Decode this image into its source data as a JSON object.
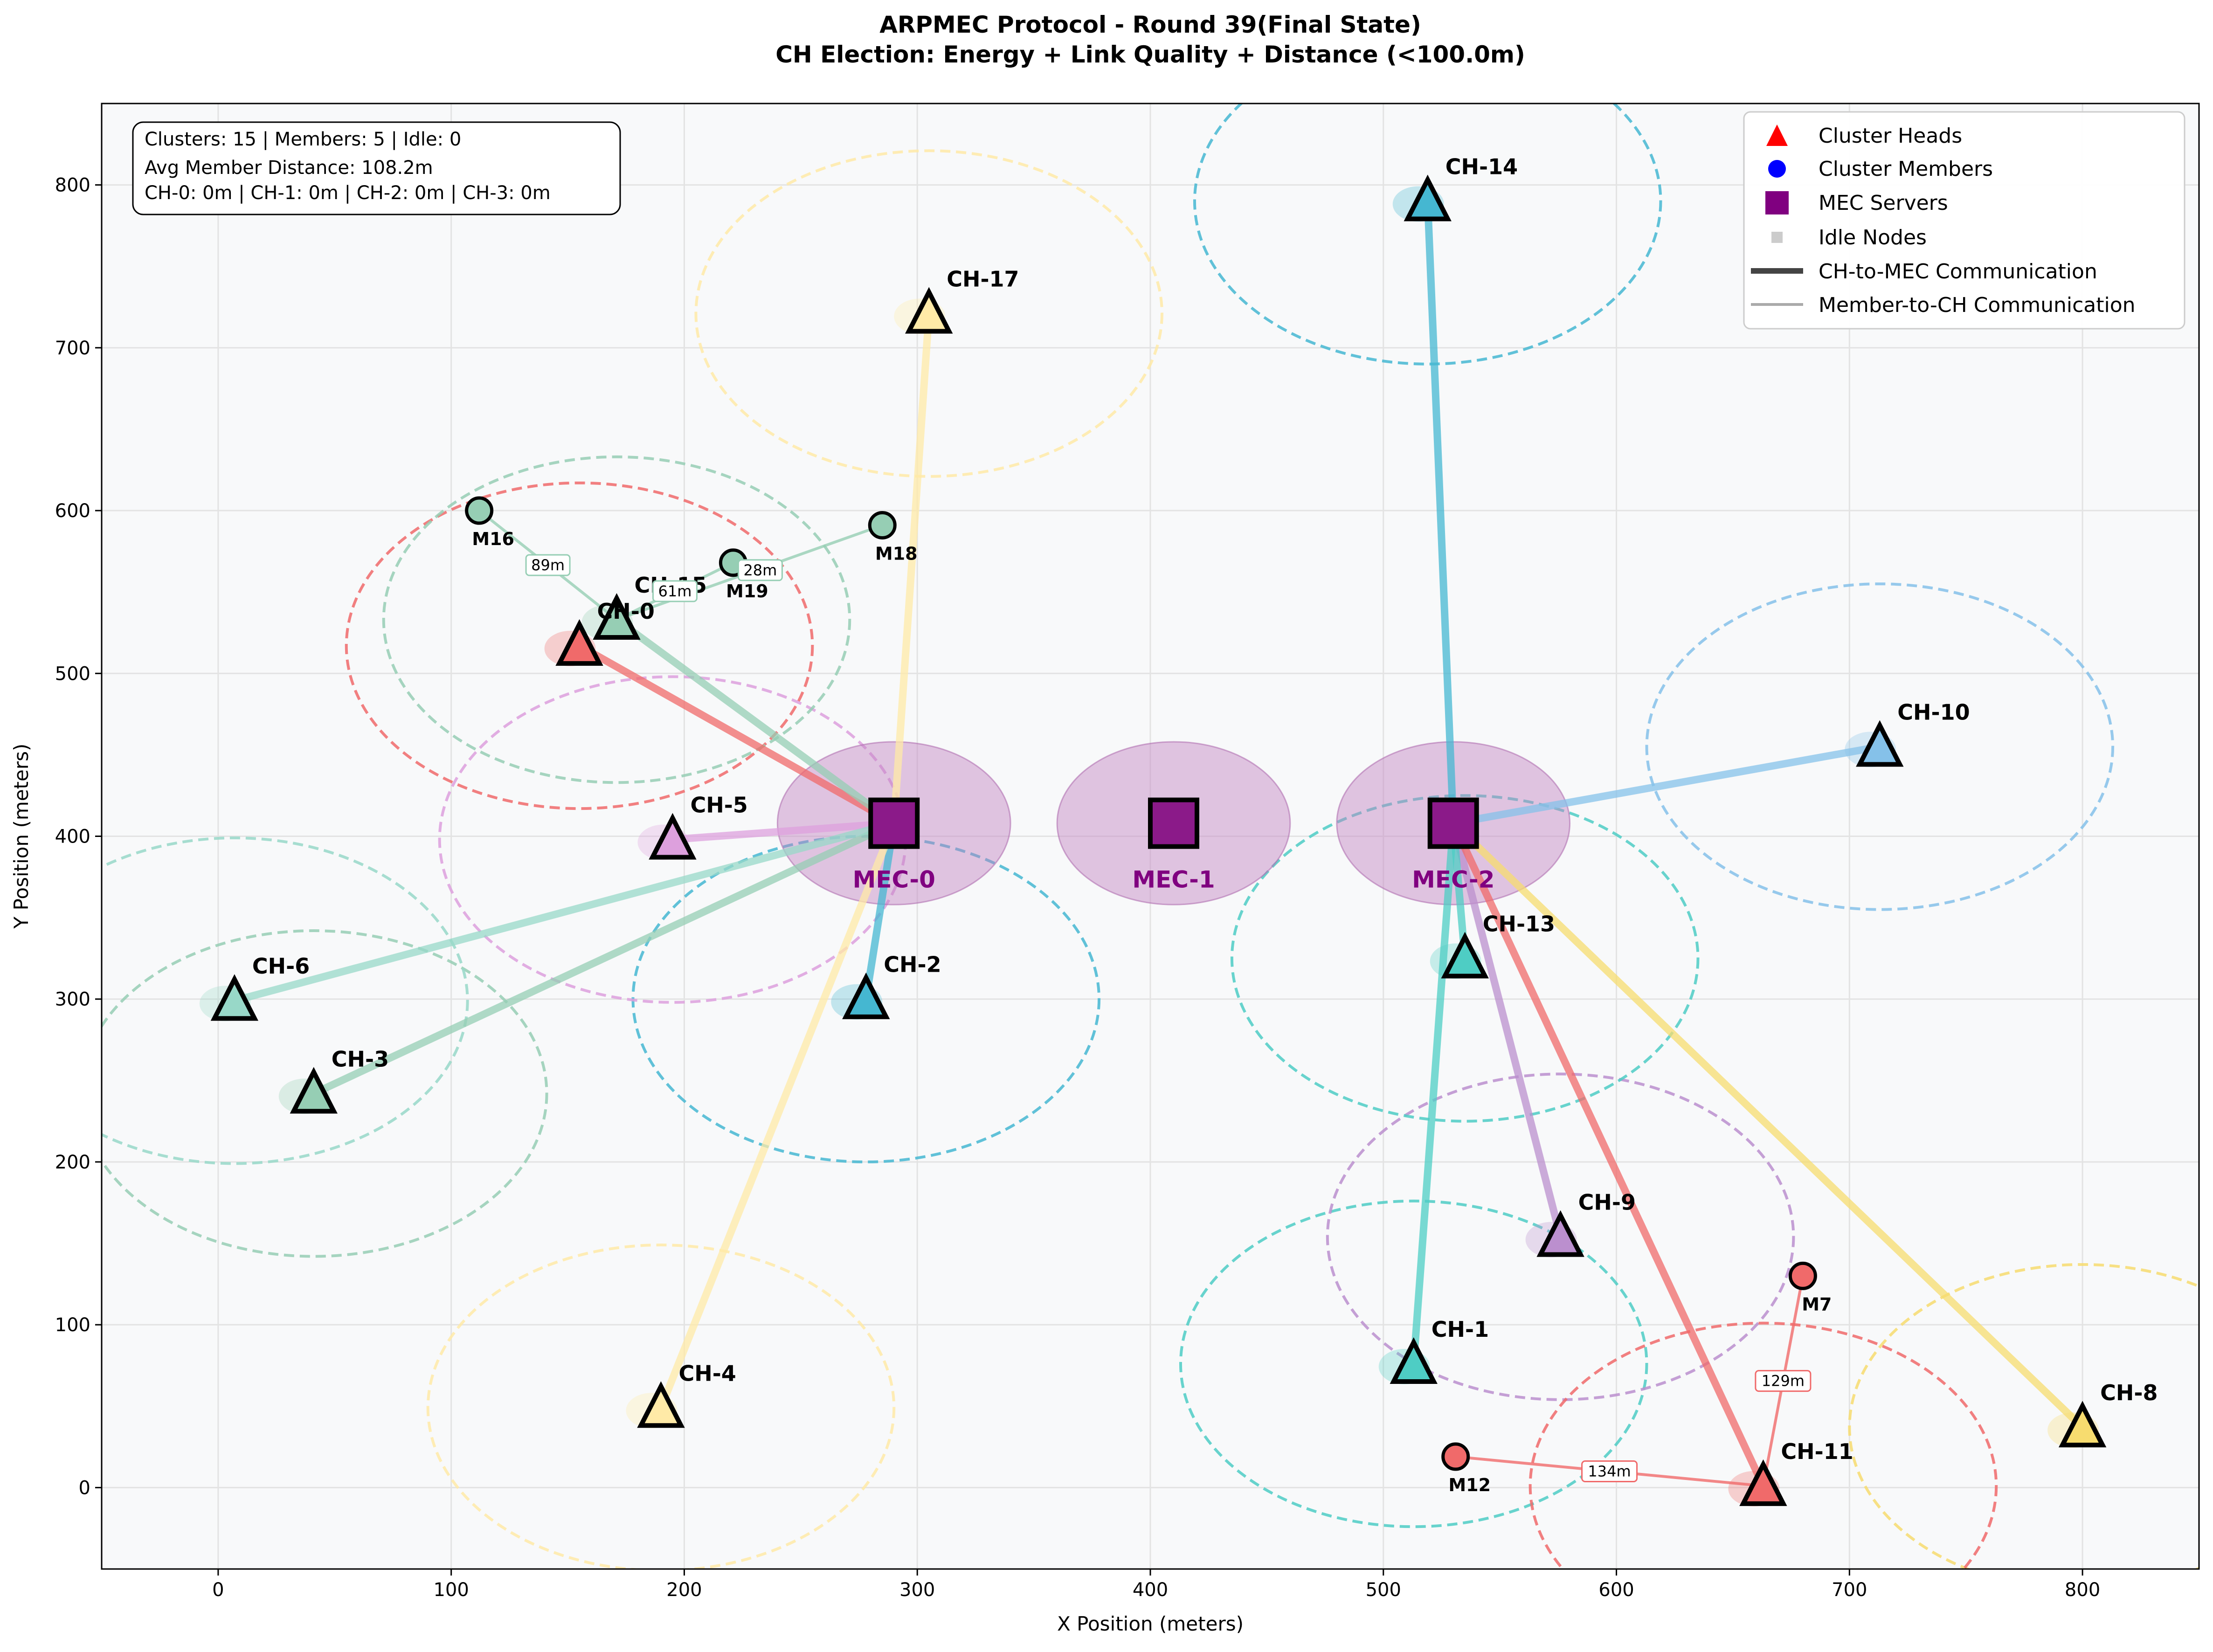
{
  "chart_data": {
    "type": "scatter",
    "title": "ARPMEC Protocol - Round 39(Final State)",
    "subtitle": "CH Election: Energy + Link Quality + Distance (<100.0m)",
    "xlabel": "X Position (meters)",
    "ylabel": "Y Position (meters)",
    "xlim": [
      -50,
      850
    ],
    "ylim": [
      -50,
      850
    ],
    "xticks": [
      0,
      100,
      200,
      300,
      400,
      500,
      600,
      700,
      800
    ],
    "yticks": [
      0,
      100,
      200,
      300,
      400,
      500,
      600,
      700,
      800
    ],
    "grid": true,
    "info_box": [
      "Clusters: 15 | Members: 5 | Idle: 0",
      "Avg Member Distance: 108.2m",
      "CH-0: 0m | CH-1: 0m | CH-2: 0m | CH-3: 0m"
    ],
    "legend_position": "top-right",
    "legend": [
      {
        "label": "Cluster Heads",
        "marker": "triangle",
        "color": "#ff0000"
      },
      {
        "label": "Cluster Members",
        "marker": "circle",
        "color": "#0000ff"
      },
      {
        "label": "MEC Servers",
        "marker": "square",
        "color": "#800080"
      },
      {
        "label": "Idle Nodes",
        "marker": "small-square",
        "color": "#cccccc"
      },
      {
        "label": "CH-to-MEC Communication",
        "marker": "thick-line",
        "color": "#444444"
      },
      {
        "label": "Member-to-CH Communication",
        "marker": "thin-line",
        "color": "#aaaaaa"
      }
    ],
    "mec_servers": [
      {
        "label": "MEC-0",
        "x": 290,
        "y": 408
      },
      {
        "label": "MEC-1",
        "x": 410,
        "y": 408
      },
      {
        "label": "MEC-2",
        "x": 530,
        "y": 408
      }
    ],
    "cluster_heads": [
      {
        "label": "CH-0",
        "x": 155,
        "y": 517,
        "color": "#f06a6a",
        "mec": 0
      },
      {
        "label": "CH-1",
        "x": 513,
        "y": 76,
        "color": "#4ecdc4",
        "mec": 2
      },
      {
        "label": "CH-2",
        "x": 278,
        "y": 300,
        "color": "#45b7d1",
        "mec": 0
      },
      {
        "label": "CH-3",
        "x": 41,
        "y": 242,
        "color": "#96ceb4",
        "mec": 0
      },
      {
        "label": "CH-4",
        "x": 190,
        "y": 49,
        "color": "#ffeaa7",
        "mec": 0
      },
      {
        "label": "CH-5",
        "x": 195,
        "y": 398,
        "color": "#dda0dd",
        "mec": 0
      },
      {
        "label": "CH-6",
        "x": 7,
        "y": 299,
        "color": "#98d8c8",
        "mec": 0
      },
      {
        "label": "CH-8",
        "x": 800,
        "y": 37,
        "color": "#f7dc6f",
        "mec": 2
      },
      {
        "label": "CH-9",
        "x": 576,
        "y": 154,
        "color": "#bb8fce",
        "mec": 2
      },
      {
        "label": "CH-10",
        "x": 713,
        "y": 455,
        "color": "#85c1e9",
        "mec": 2
      },
      {
        "label": "CH-11",
        "x": 663,
        "y": 1,
        "color": "#f06a6a",
        "mec": 2
      },
      {
        "label": "CH-13",
        "x": 535,
        "y": 325,
        "color": "#4ecdc4",
        "mec": 2
      },
      {
        "label": "CH-14",
        "x": 519,
        "y": 790,
        "color": "#45b7d1",
        "mec": 2
      },
      {
        "label": "CH-15",
        "x": 171,
        "y": 533,
        "color": "#96ceb4",
        "mec": 0
      },
      {
        "label": "CH-17",
        "x": 305,
        "y": 721,
        "color": "#ffeaa7",
        "mec": 0
      }
    ],
    "members": [
      {
        "label": "M16",
        "x": 112,
        "y": 600,
        "ch": "CH-15",
        "color": "#96ceb4",
        "dist_label": "89m"
      },
      {
        "label": "M18",
        "x": 285,
        "y": 591,
        "ch": "CH-15",
        "color": "#96ceb4",
        "dist_label": ""
      },
      {
        "label": "M19",
        "x": 221,
        "y": 568,
        "ch": "CH-15",
        "color": "#96ceb4",
        "dist_label": "61m"
      },
      {
        "label": "M7",
        "x": 680,
        "y": 130,
        "ch": "CH-11",
        "color": "#f06a6a",
        "dist_label": "129m"
      },
      {
        "label": "M12",
        "x": 531,
        "y": 19,
        "ch": "CH-11",
        "color": "#f06a6a",
        "dist_label": "134m"
      }
    ],
    "extra_labels": [
      "28m"
    ],
    "cluster_radius": 100,
    "mec_radius": 50
  }
}
